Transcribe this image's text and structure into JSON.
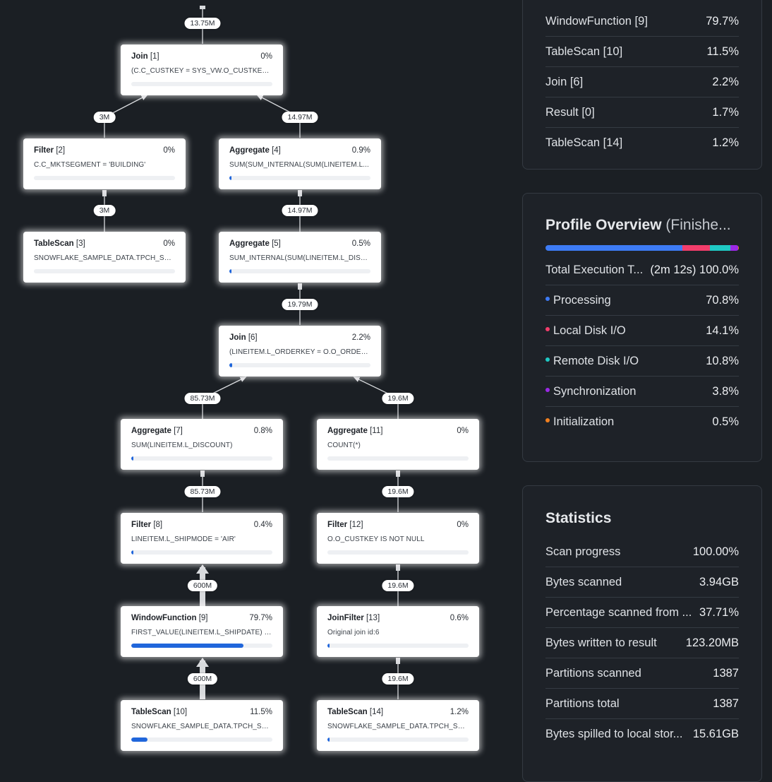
{
  "graph": {
    "nodes": {
      "n1": {
        "op": "Join",
        "idx": "[1]",
        "pct": "0%",
        "expr": "(C.C_CUSTKEY = SYS_VW.O_CUSTKEY_1)",
        "fill": 0
      },
      "n2": {
        "op": "Filter",
        "idx": "[2]",
        "pct": "0%",
        "expr": "C.C_MKTSEGMENT = 'BUILDING'",
        "fill": 0
      },
      "n3": {
        "op": "TableScan",
        "idx": "[3]",
        "pct": "0%",
        "expr": "SNOWFLAKE_SAMPLE_DATA.TPCH_SF1...",
        "fill": 0
      },
      "n4": {
        "op": "Aggregate",
        "idx": "[4]",
        "pct": "0.9%",
        "expr": "SUM(SUM_INTERNAL(SUM(LINEITEM.L...",
        "fill": 0.009
      },
      "n5": {
        "op": "Aggregate",
        "idx": "[5]",
        "pct": "0.5%",
        "expr": "SUM_INTERNAL(SUM(LINEITEM.L_DISC...",
        "fill": 0.005
      },
      "n6": {
        "op": "Join",
        "idx": "[6]",
        "pct": "2.2%",
        "expr": "(LINEITEM.L_ORDERKEY = O.O_ORDERK...",
        "fill": 0.022
      },
      "n7": {
        "op": "Aggregate",
        "idx": "[7]",
        "pct": "0.8%",
        "expr": "SUM(LINEITEM.L_DISCOUNT)",
        "fill": 0.008
      },
      "n8": {
        "op": "Filter",
        "idx": "[8]",
        "pct": "0.4%",
        "expr": "LINEITEM.L_SHIPMODE = 'AIR'",
        "fill": 0.004
      },
      "n9": {
        "op": "WindowFunction",
        "idx": "[9]",
        "pct": "79.7%",
        "expr": "FIRST_VALUE(LINEITEM.L_SHIPDATE) O...",
        "fill": 0.797
      },
      "n10": {
        "op": "TableScan",
        "idx": "[10]",
        "pct": "11.5%",
        "expr": "SNOWFLAKE_SAMPLE_DATA.TPCH_SF1...",
        "fill": 0.115
      },
      "n11": {
        "op": "Aggregate",
        "idx": "[11]",
        "pct": "0%",
        "expr": "COUNT(*)",
        "fill": 0
      },
      "n12": {
        "op": "Filter",
        "idx": "[12]",
        "pct": "0%",
        "expr": "O.O_CUSTKEY IS NOT NULL",
        "fill": 0
      },
      "n13": {
        "op": "JoinFilter",
        "idx": "[13]",
        "pct": "0.6%",
        "expr": "Original join id:6",
        "fill": 0.006
      },
      "n14": {
        "op": "TableScan",
        "idx": "[14]",
        "pct": "1.2%",
        "expr": "SNOWFLAKE_SAMPLE_DATA.TPCH_SF1...",
        "fill": 0.012
      }
    },
    "edges": {
      "e0": "13.75M",
      "e2_1": "3M",
      "e4_1": "14.97M",
      "e3_2": "3M",
      "e5_4": "14.97M",
      "e6_5": "19.79M",
      "e7_6": "85.73M",
      "e11_6": "19.6M",
      "e8_7": "85.73M",
      "e12_11": "19.6M",
      "e9_8": "600M",
      "e13_12": "19.6M",
      "e10_9": "600M",
      "e14_13": "19.6M"
    }
  },
  "top_operators": {
    "rows": [
      {
        "label": "WindowFunction [9]",
        "value": "79.7%"
      },
      {
        "label": "TableScan [10]",
        "value": "11.5%"
      },
      {
        "label": "Join [6]",
        "value": "2.2%"
      },
      {
        "label": "Result [0]",
        "value": "1.7%"
      },
      {
        "label": "TableScan [14]",
        "value": "1.2%"
      }
    ]
  },
  "profile_overview": {
    "title": "Profile Overview",
    "status": "(Finishe...",
    "total_label": "Total Execution T...",
    "total_time": "(2m 12s)",
    "total_pct": "100.0%",
    "items": [
      {
        "label": "Processing",
        "value": "70.8%",
        "pct": 70.8,
        "color": "#3d7bf5"
      },
      {
        "label": "Local Disk I/O",
        "value": "14.1%",
        "pct": 14.1,
        "color": "#f23d6b"
      },
      {
        "label": "Remote Disk I/O",
        "value": "10.8%",
        "pct": 10.8,
        "color": "#1fc9c4"
      },
      {
        "label": "Synchronization",
        "value": "3.8%",
        "pct": 3.8,
        "color": "#9b29e6"
      },
      {
        "label": "Initialization",
        "value": "0.5%",
        "pct": 0.5,
        "color": "#f2801f"
      }
    ]
  },
  "statistics": {
    "title": "Statistics",
    "rows": [
      {
        "label": "Scan progress",
        "value": "100.00%"
      },
      {
        "label": "Bytes scanned",
        "value": "3.94GB"
      },
      {
        "label": "Percentage scanned from ...",
        "value": "37.71%"
      },
      {
        "label": "Bytes written to result",
        "value": "123.20MB"
      },
      {
        "label": "Partitions scanned",
        "value": "1387"
      },
      {
        "label": "Partitions total",
        "value": "1387"
      },
      {
        "label": "Bytes spilled to local stor...",
        "value": "15.61GB"
      }
    ]
  }
}
